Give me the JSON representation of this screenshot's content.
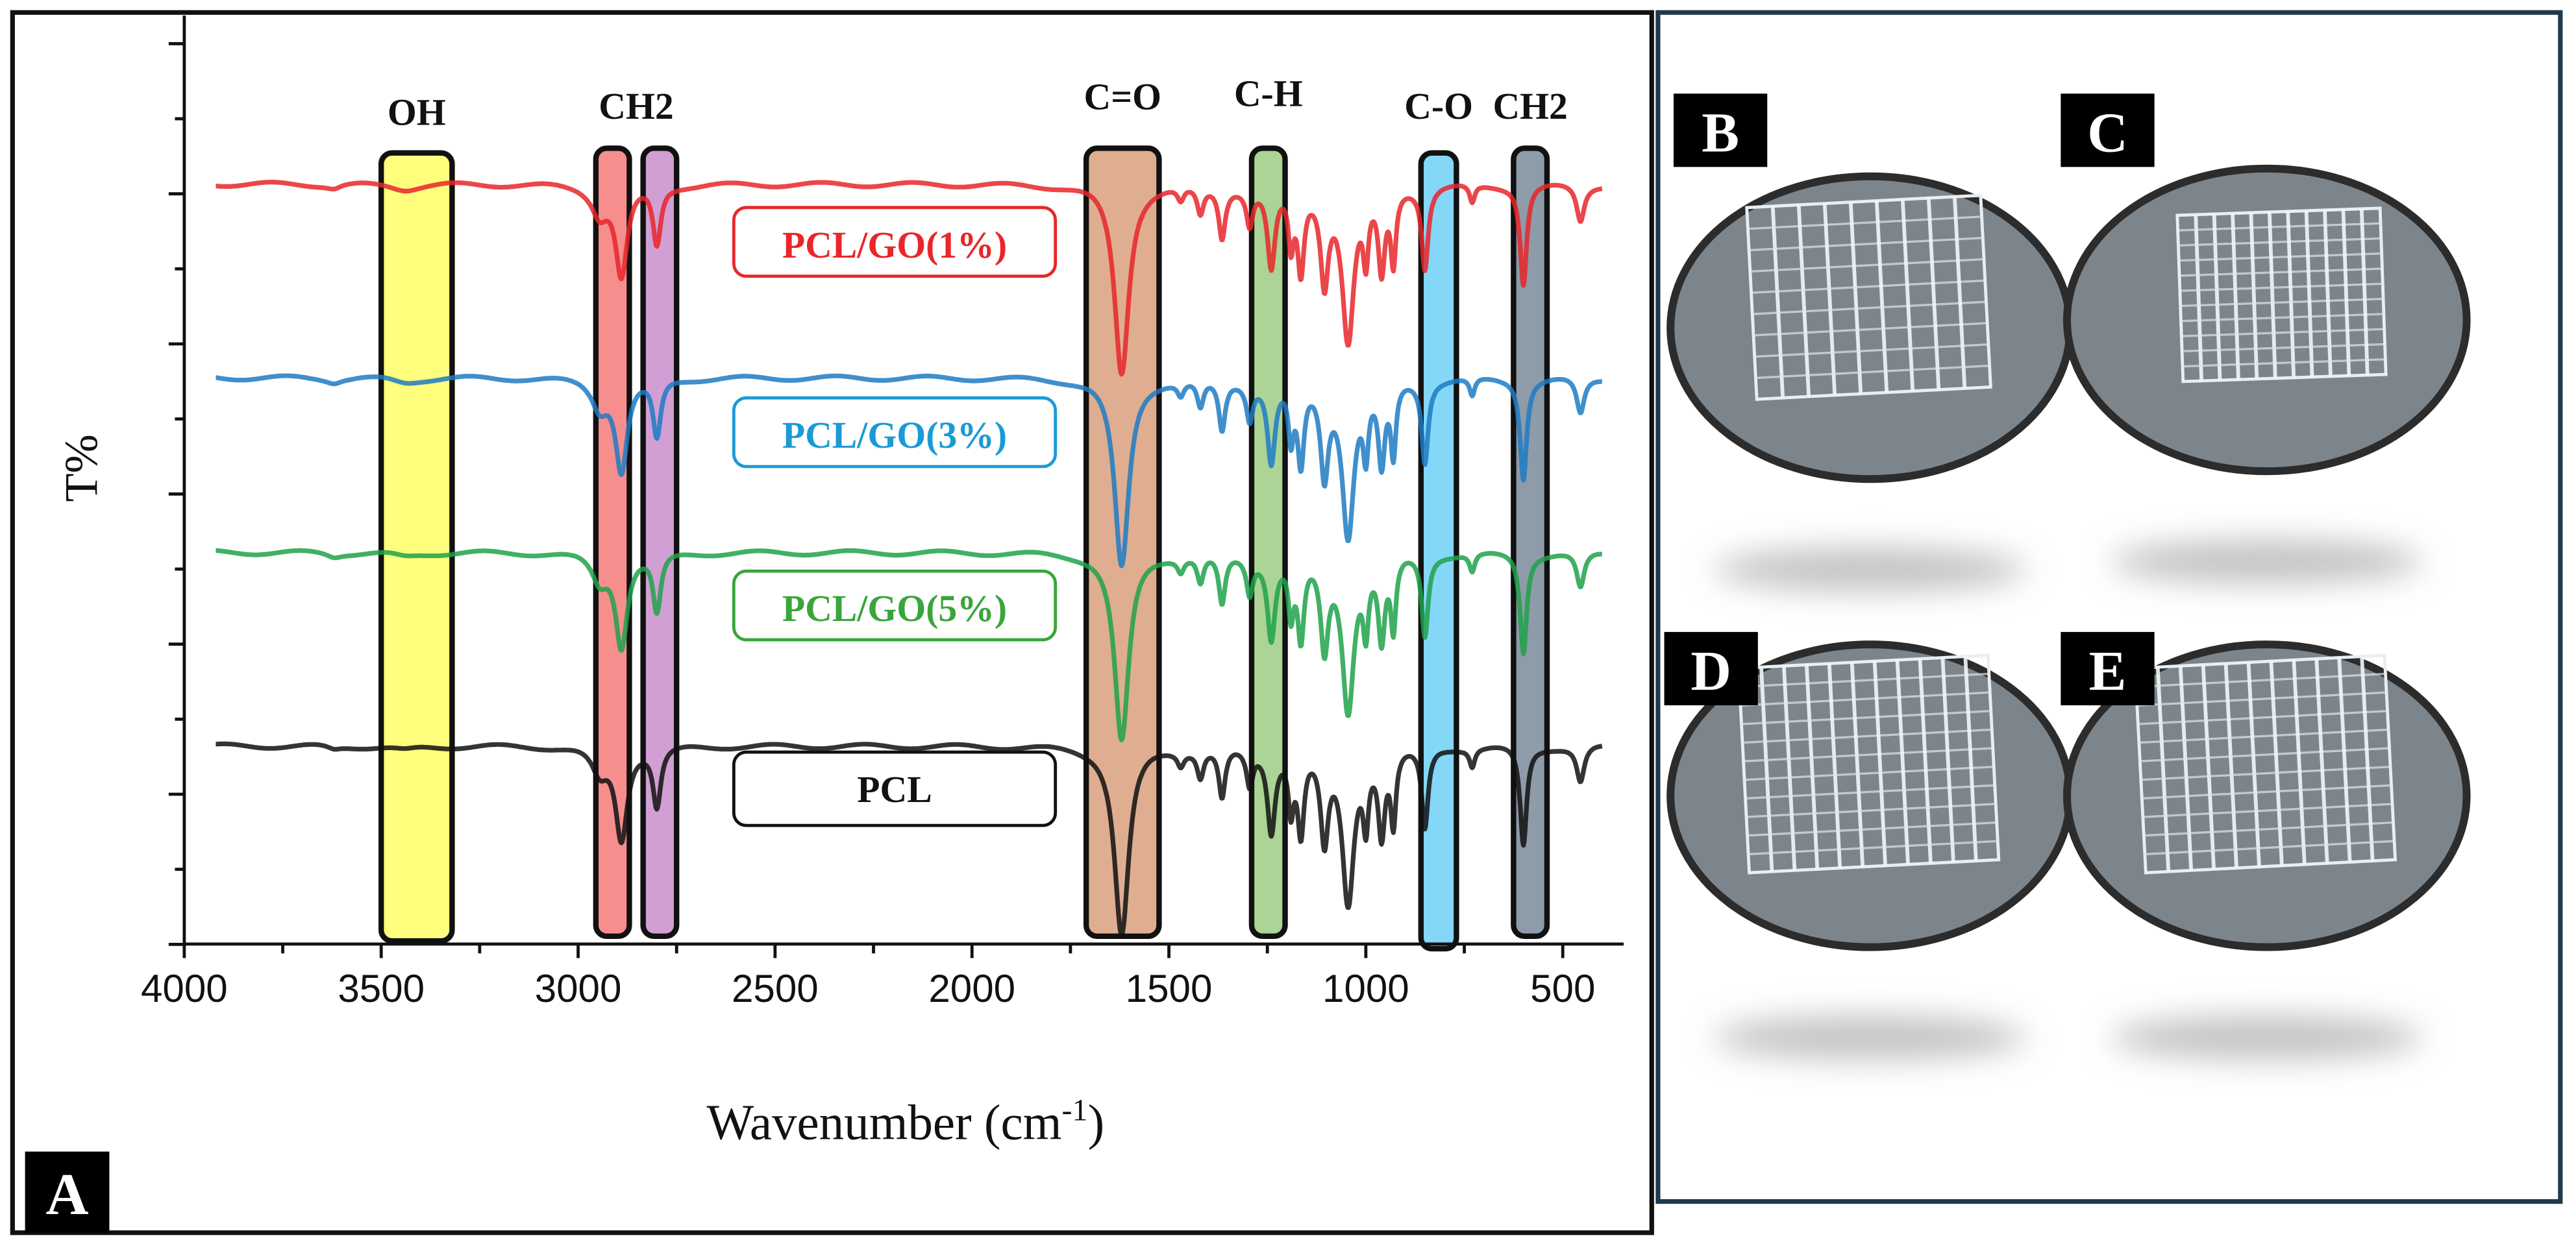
{
  "chart_data": {
    "type": "line",
    "title": "",
    "xlabel": "Wavenumber (cm",
    "xlabel_sup": "-1",
    "xlabel_close": ")",
    "ylabel": "T%",
    "xlim": [
      4000,
      400
    ],
    "ylim": [
      0,
      100
    ],
    "x_ticks": [
      4000,
      3500,
      3000,
      2500,
      2000,
      1500,
      1000,
      500
    ],
    "x_tick_labels": [
      "4000",
      "3500",
      "3000",
      "2500",
      "2000",
      "1500",
      "1000",
      "500"
    ],
    "grid": false,
    "series": [
      {
        "name": "PCL/GO(1%)",
        "color": "#e8262a",
        "baseline": 84.4
      },
      {
        "name": "PCL/GO(3%)",
        "color": "#1f7bc4",
        "baseline": 62.9
      },
      {
        "name": "PCL/GO(5%)",
        "color": "#1fa24a",
        "baseline": 43.5
      },
      {
        "name": "PCL",
        "color": "#111111",
        "baseline": 22.0
      }
    ],
    "legend_label_colors": [
      "#e8262a",
      "#1a9ad6",
      "#3aa53a",
      "#111111"
    ],
    "peaks_note_units": "wavenumber, depth in T% units, half-width in cm-1",
    "peaks": [
      [
        3620,
        0.4,
        20
      ],
      [
        3440,
        0.5,
        40
      ],
      [
        2945,
        3.0,
        25
      ],
      [
        2890,
        10.0,
        18
      ],
      [
        2800,
        6.5,
        12
      ],
      [
        1620,
        21.0,
        22
      ],
      [
        1470,
        1.5,
        10
      ],
      [
        1420,
        3.0,
        10
      ],
      [
        1365,
        5.5,
        10
      ],
      [
        1295,
        4.0,
        10
      ],
      [
        1240,
        9.0,
        12
      ],
      [
        1190,
        6.0,
        8
      ],
      [
        1165,
        9.0,
        10
      ],
      [
        1105,
        10.0,
        12
      ],
      [
        1045,
        17.0,
        18
      ],
      [
        1000,
        7.0,
        8
      ],
      [
        960,
        9.0,
        10
      ],
      [
        930,
        8.0,
        8
      ],
      [
        850,
        9.0,
        10
      ],
      [
        730,
        2.0,
        8
      ],
      [
        600,
        11.0,
        10
      ],
      [
        455,
        4.0,
        12
      ]
    ],
    "bands": [
      {
        "label": "OH",
        "range": [
          3500,
          3320
        ],
        "color": "#ffff66"
      },
      {
        "label": "CH2",
        "range": [
          2955,
          2870
        ],
        "color": "#f47a7a"
      },
      {
        "label": "",
        "range": [
          2835,
          2750
        ],
        "color": "#c98ecb"
      },
      {
        "label": "C=O",
        "range": [
          1710,
          1525
        ],
        "color": "#d9a07e"
      },
      {
        "label": "C-H",
        "range": [
          1290,
          1205
        ],
        "color": "#9ccc84"
      },
      {
        "label": "C-O",
        "range": [
          860,
          770
        ],
        "color": "#6fd0f5"
      },
      {
        "label": "CH2",
        "range": [
          625,
          540
        ],
        "color": "#7a8a9a"
      }
    ]
  },
  "panels": {
    "a": "A",
    "photos": [
      {
        "label": "B"
      },
      {
        "label": "C"
      },
      {
        "label": "D"
      },
      {
        "label": "E"
      }
    ]
  }
}
